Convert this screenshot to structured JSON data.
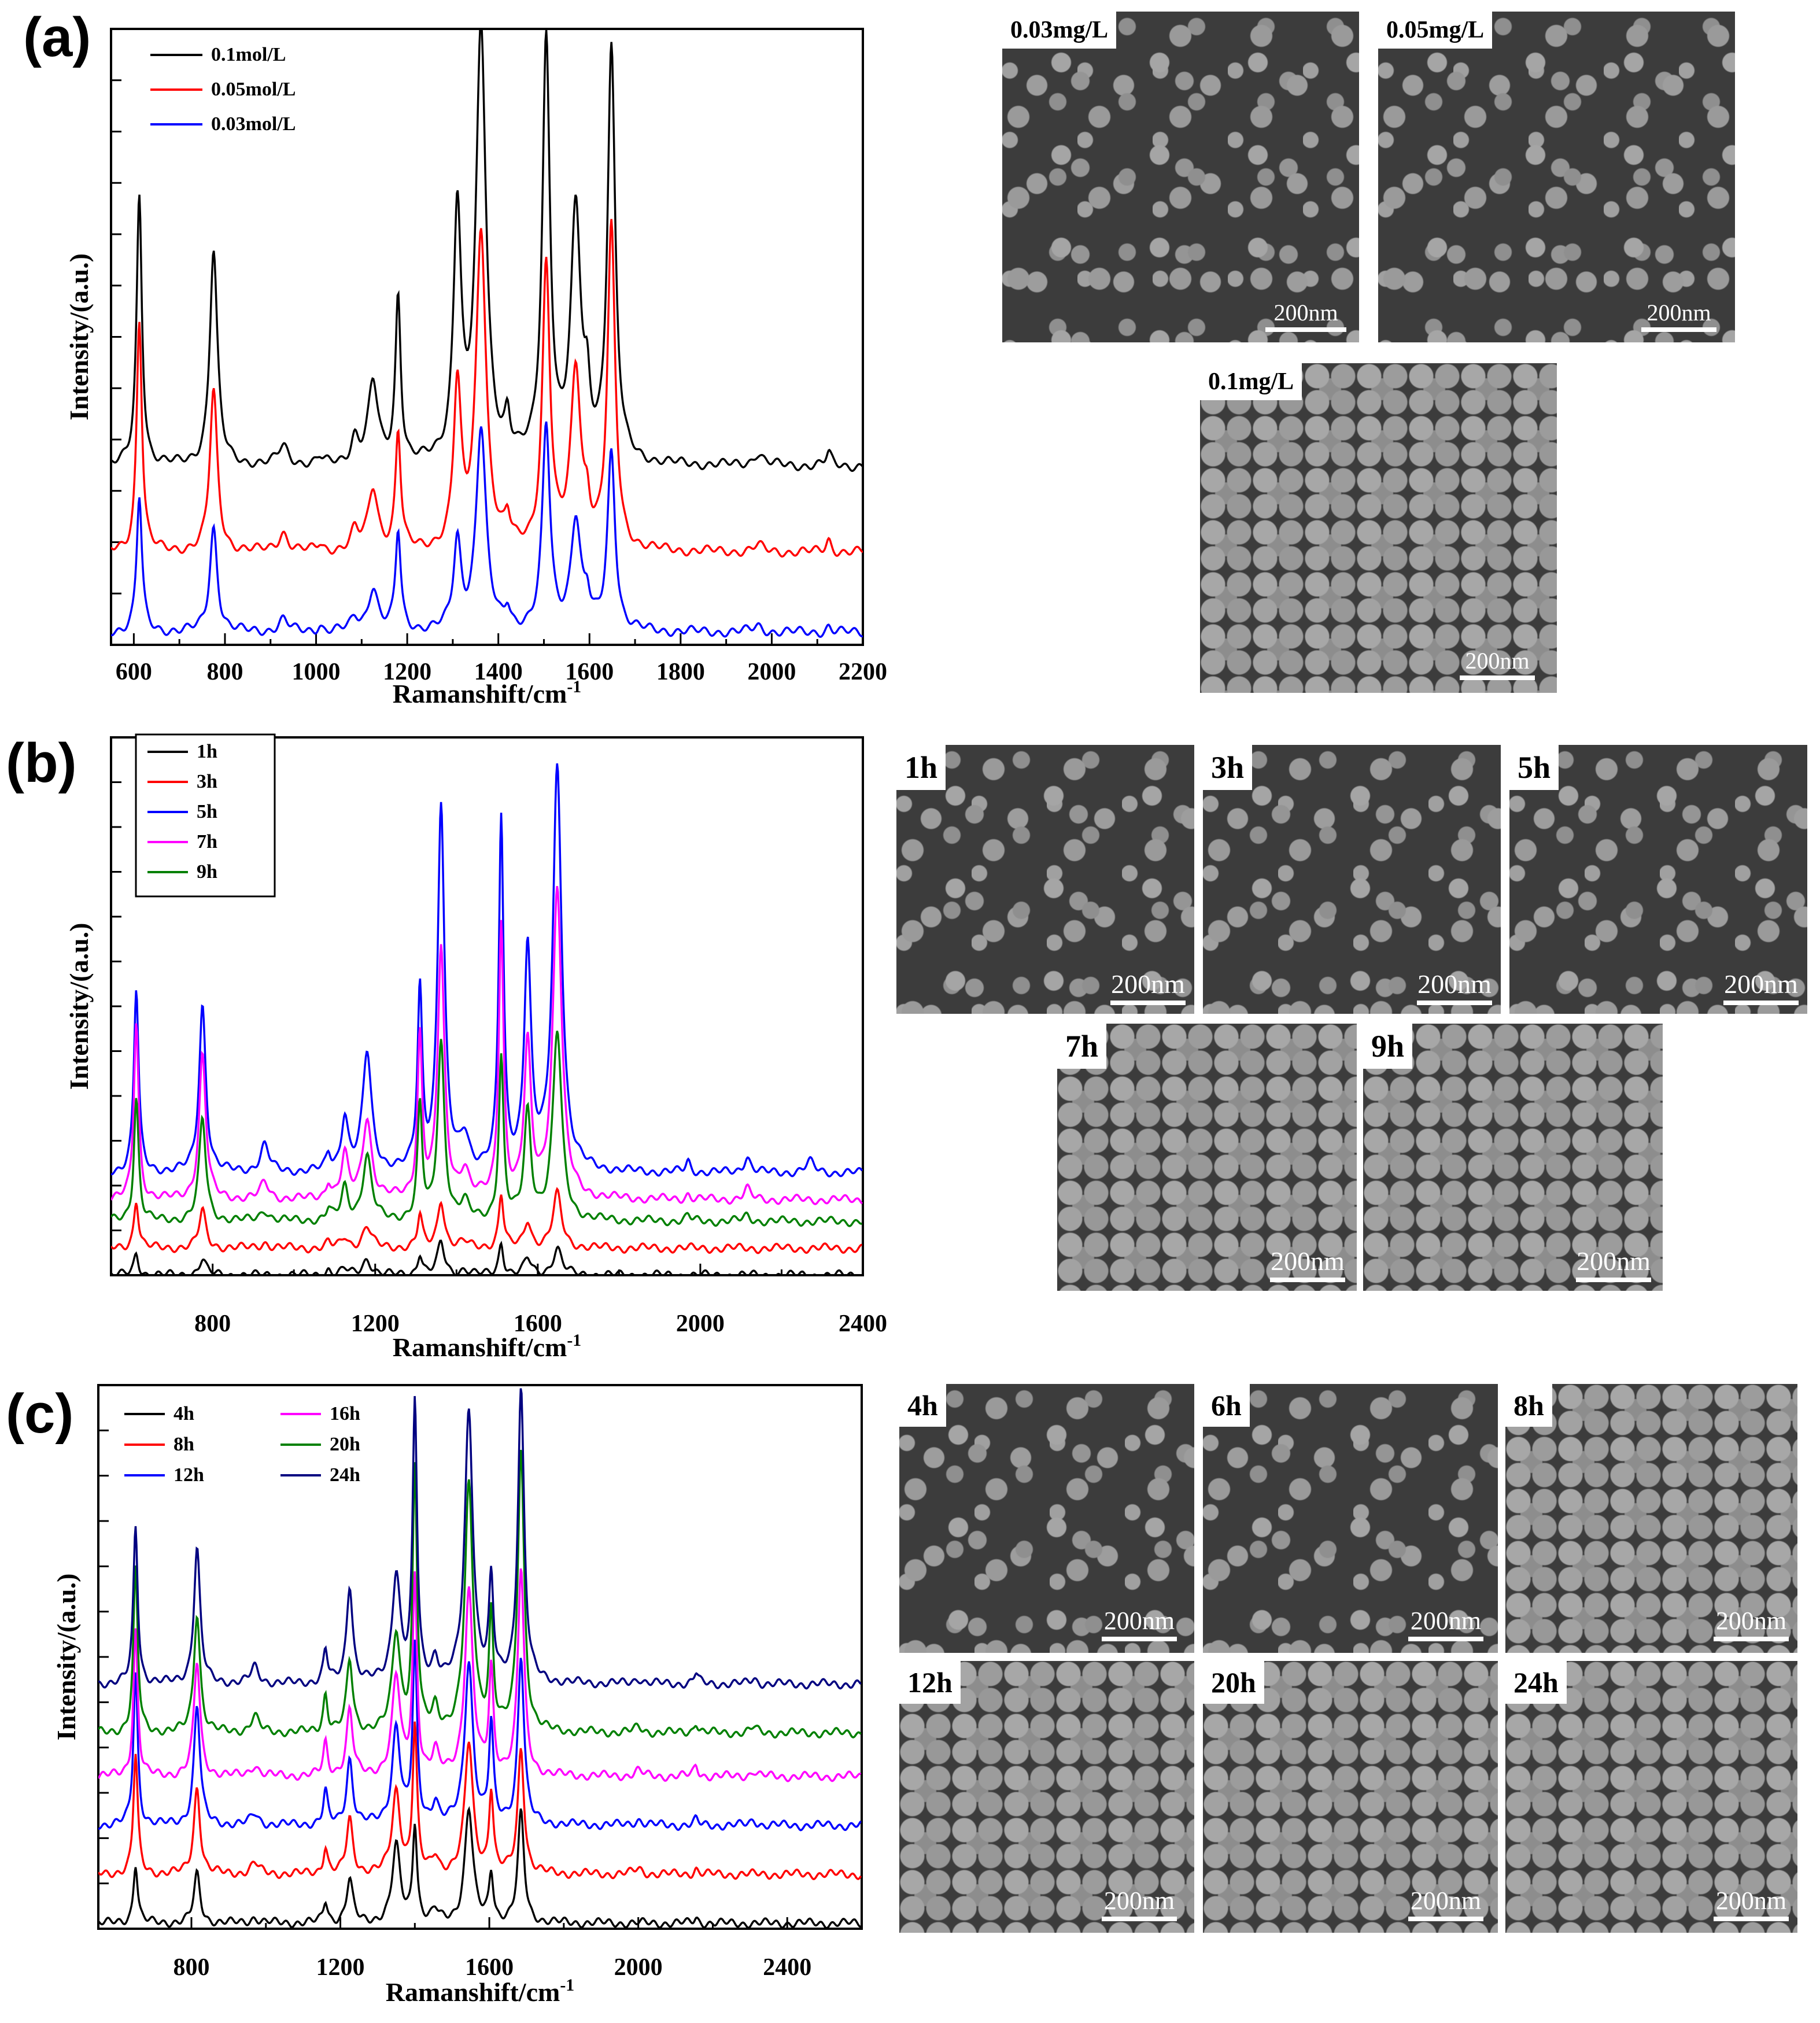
{
  "panels": {
    "a": {
      "letter": "(a)",
      "chart": {
        "type": "line",
        "xlabel": "Ramanshift/cm",
        "xlabel_sup": "-1",
        "ylabel": "Intensity/(a.u.)",
        "xlim": [
          550,
          2200
        ],
        "xticks": [
          "600",
          "800",
          "1000",
          "1200",
          "1400",
          "1600",
          "1800",
          "2000",
          "2200"
        ],
        "peaks": [
          612,
          775,
          928,
          1008,
          1085,
          1125,
          1180,
          1310,
          1362,
          1420,
          1505,
          1570,
          1595,
          1648,
          1970,
          2125
        ],
        "series": [
          {
            "name": "0.1mol/L",
            "color": "#000000",
            "offset": 0.29,
            "scale": [
              0.44,
              0.35,
              0.03,
              0.01,
              0.04,
              0.13,
              0.27,
              0.41,
              0.7,
              0.06,
              0.68,
              0.4,
              0.08,
              0.67,
              0.02,
              0.02
            ]
          },
          {
            "name": "0.05mol/L",
            "color": "#ff0000",
            "offset": 0.15,
            "scale": [
              0.38,
              0.26,
              0.03,
              0.01,
              0.03,
              0.1,
              0.19,
              0.26,
              0.52,
              0.04,
              0.46,
              0.29,
              0.05,
              0.52,
              0.01,
              0.02
            ]
          },
          {
            "name": "0.03mol/L",
            "color": "#0000ff",
            "offset": 0.02,
            "scale": [
              0.22,
              0.17,
              0.02,
              0.01,
              0.02,
              0.07,
              0.16,
              0.14,
              0.33,
              0.03,
              0.33,
              0.18,
              0.04,
              0.29,
              0.01,
              0.01
            ]
          }
        ]
      },
      "images": [
        {
          "label": "0.03mg/L",
          "scale": "200nm"
        },
        {
          "label": "0.05mg/L",
          "scale": "200nm"
        },
        {
          "label": "0.1mg/L",
          "scale": "200nm"
        }
      ]
    },
    "b": {
      "letter": "(b)",
      "chart": {
        "type": "line",
        "xlabel": "Ramanshift/cm",
        "xlabel_sup": "-1",
        "ylabel": "Intensity/(a.u.)",
        "xlim": [
          550,
          2400
        ],
        "xticks": [
          "800",
          "1200",
          "1600",
          "2000",
          "2400"
        ],
        "peaks": [
          612,
          775,
          928,
          1085,
          1125,
          1180,
          1310,
          1362,
          1420,
          1510,
          1575,
          1648,
          1970,
          2115,
          2270
        ],
        "series": [
          {
            "name": "1h",
            "color": "#000000",
            "offset": 0.0,
            "scale": [
              0.04,
              0.03,
              0.0,
              0.01,
              0.01,
              0.03,
              0.04,
              0.06,
              0.01,
              0.06,
              0.03,
              0.05,
              0.0,
              0.0,
              0.0
            ]
          },
          {
            "name": "3h",
            "color": "#ff0000",
            "offset": 0.05,
            "scale": [
              0.09,
              0.07,
              0.01,
              0.01,
              0.02,
              0.04,
              0.06,
              0.09,
              0.01,
              0.1,
              0.05,
              0.1,
              0.0,
              0.0,
              0.0
            ]
          },
          {
            "name": "5h",
            "color": "#0000ff",
            "offset": 0.19,
            "scale": [
              0.34,
              0.31,
              0.05,
              0.03,
              0.1,
              0.22,
              0.33,
              0.68,
              0.06,
              0.65,
              0.41,
              0.75,
              0.02,
              0.03,
              0.02
            ]
          },
          {
            "name": "7h",
            "color": "#ff00ff",
            "offset": 0.14,
            "scale": [
              0.33,
              0.27,
              0.03,
              0.03,
              0.08,
              0.15,
              0.3,
              0.46,
              0.05,
              0.51,
              0.28,
              0.58,
              0.01,
              0.02,
              0.0
            ]
          },
          {
            "name": "9h",
            "color": "#008000",
            "offset": 0.1,
            "scale": [
              0.23,
              0.19,
              0.02,
              0.02,
              0.06,
              0.12,
              0.21,
              0.33,
              0.03,
              0.3,
              0.2,
              0.35,
              0.01,
              0.01,
              0.0
            ]
          }
        ]
      },
      "images": [
        {
          "label": "1h",
          "scale": "200nm"
        },
        {
          "label": "3h",
          "scale": "200nm"
        },
        {
          "label": "5h",
          "scale": "200nm"
        },
        {
          "label": "7h",
          "scale": "200nm"
        },
        {
          "label": "9h",
          "scale": "200nm"
        }
      ]
    },
    "c": {
      "letter": "(c)",
      "chart": {
        "type": "line",
        "xlabel": "Ramanshift/cm",
        "xlabel_sup": "-1",
        "ylabel": "Intensity/(a.u.)",
        "xlim": [
          550,
          2600
        ],
        "xticks": [
          "800",
          "1200",
          "1600",
          "2000",
          "2400"
        ],
        "peaks": [
          650,
          815,
          970,
          1160,
          1225,
          1350,
          1400,
          1455,
          1545,
          1605,
          1685,
          2000,
          2155,
          2310
        ],
        "series": [
          {
            "name": "4h",
            "color": "#000000",
            "offset": 0.01,
            "scale": [
              0.11,
              0.09,
              0.01,
              0.04,
              0.08,
              0.14,
              0.18,
              0.02,
              0.21,
              0.09,
              0.2,
              0.0,
              0.01,
              0.0
            ]
          },
          {
            "name": "8h",
            "color": "#ff0000",
            "offset": 0.1,
            "scale": [
              0.22,
              0.16,
              0.02,
              0.05,
              0.1,
              0.15,
              0.27,
              0.03,
              0.24,
              0.15,
              0.23,
              0.01,
              0.01,
              0.0
            ]
          },
          {
            "name": "12h",
            "color": "#0000ff",
            "offset": 0.19,
            "scale": [
              0.28,
              0.22,
              0.02,
              0.06,
              0.12,
              0.18,
              0.32,
              0.04,
              0.3,
              0.18,
              0.31,
              0.01,
              0.01,
              0.01
            ]
          },
          {
            "name": "16h",
            "color": "#ff00ff",
            "offset": 0.28,
            "scale": [
              0.27,
              0.21,
              0.02,
              0.06,
              0.12,
              0.18,
              0.36,
              0.04,
              0.34,
              0.19,
              0.38,
              0.01,
              0.02,
              0.01
            ]
          },
          {
            "name": "20h",
            "color": "#008000",
            "offset": 0.36,
            "scale": [
              0.3,
              0.22,
              0.03,
              0.07,
              0.13,
              0.18,
              0.48,
              0.04,
              0.45,
              0.21,
              0.52,
              0.01,
              0.02,
              0.01
            ]
          },
          {
            "name": "24h",
            "color": "#000080",
            "offset": 0.45,
            "scale": [
              0.29,
              0.25,
              0.03,
              0.06,
              0.18,
              0.2,
              0.51,
              0.04,
              0.5,
              0.18,
              0.54,
              0.01,
              0.02,
              0.01
            ]
          }
        ]
      },
      "images": [
        {
          "label": "4h",
          "scale": "200nm"
        },
        {
          "label": "6h",
          "scale": "200nm"
        },
        {
          "label": "8h",
          "scale": "200nm"
        },
        {
          "label": "12h",
          "scale": "200nm"
        },
        {
          "label": "20h",
          "scale": "200nm"
        },
        {
          "label": "24h",
          "scale": "200nm"
        }
      ]
    }
  }
}
